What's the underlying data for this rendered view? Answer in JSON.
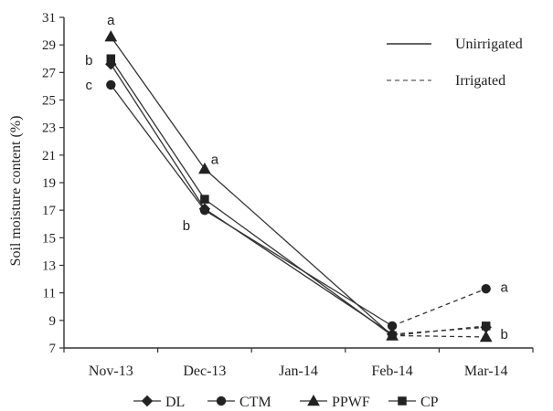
{
  "chart_data": {
    "type": "line",
    "title": "",
    "xlabel": "",
    "ylabel": "Soil moisture content (%)",
    "categories": [
      "Nov-13",
      "Dec-13",
      "Jan-14",
      "Feb-14",
      "Mar-14"
    ],
    "ylim": [
      7,
      31
    ],
    "yticks": [
      "7",
      "9",
      "11",
      "13",
      "15",
      "17",
      "19",
      "21",
      "23",
      "25",
      "27",
      "29",
      "31"
    ],
    "grid": false,
    "line_style_legend": [
      {
        "label": "Unirrigated",
        "style": "solid"
      },
      {
        "label": "Irrigated",
        "style": "dashed"
      }
    ],
    "series": [
      {
        "name": "DL",
        "marker": "diamond",
        "values": [
          27.6,
          17.1,
          null,
          8.0,
          8.5
        ]
      },
      {
        "name": "CTM",
        "marker": "circle",
        "values": [
          26.1,
          17.0,
          null,
          8.6,
          11.3
        ]
      },
      {
        "name": "PPWF",
        "marker": "triangle",
        "values": [
          29.6,
          20.0,
          null,
          7.9,
          7.8
        ]
      },
      {
        "name": "CP",
        "marker": "square",
        "values": [
          28.0,
          17.8,
          null,
          7.9,
          8.6
        ]
      }
    ],
    "annotations": [
      {
        "text": "a",
        "x": "Nov-13",
        "y": 30.8
      },
      {
        "text": "b",
        "x": "Nov-13",
        "y": 27.9
      },
      {
        "text": "c",
        "x": "Nov-13",
        "y": 26.1
      },
      {
        "text": "a",
        "x": "Dec-13",
        "y": 20.7
      },
      {
        "text": "b",
        "x": "Dec-13",
        "y": 15.9
      },
      {
        "text": "a",
        "x": "Mar-14",
        "y": 11.4
      },
      {
        "text": "b",
        "x": "Mar-14",
        "y": 8.0
      }
    ],
    "legend_position": "bottom"
  }
}
